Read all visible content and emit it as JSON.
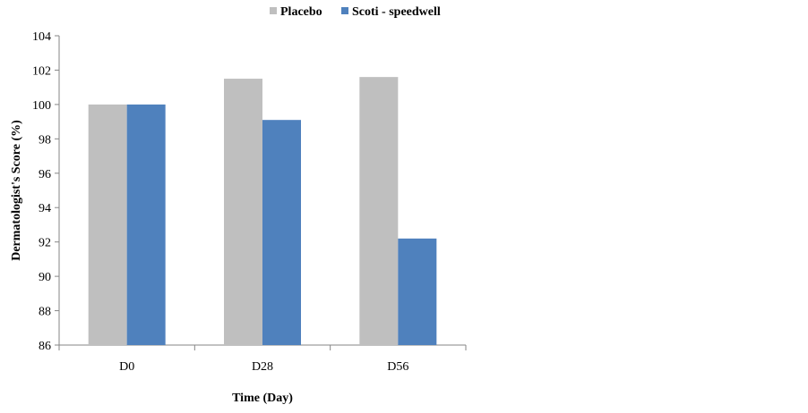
{
  "chart_data": {
    "type": "bar",
    "title": "",
    "categories": [
      "D0",
      "D28",
      "D56"
    ],
    "series": [
      {
        "name": "Placebo",
        "values": [
          100,
          101.5,
          101.6
        ],
        "color": "#bfbfbf"
      },
      {
        "name": "Scoti - speedwell",
        "values": [
          100,
          99.1,
          92.2
        ],
        "color": "#4f81bd"
      }
    ],
    "xlabel": "Time (Day)",
    "ylabel": "Dermatologist's Score (%)",
    "ylim": [
      86,
      104
    ],
    "yticks": [
      86,
      88,
      90,
      92,
      94,
      96,
      98,
      100,
      102,
      104
    ],
    "grid": false,
    "legend": "top"
  }
}
